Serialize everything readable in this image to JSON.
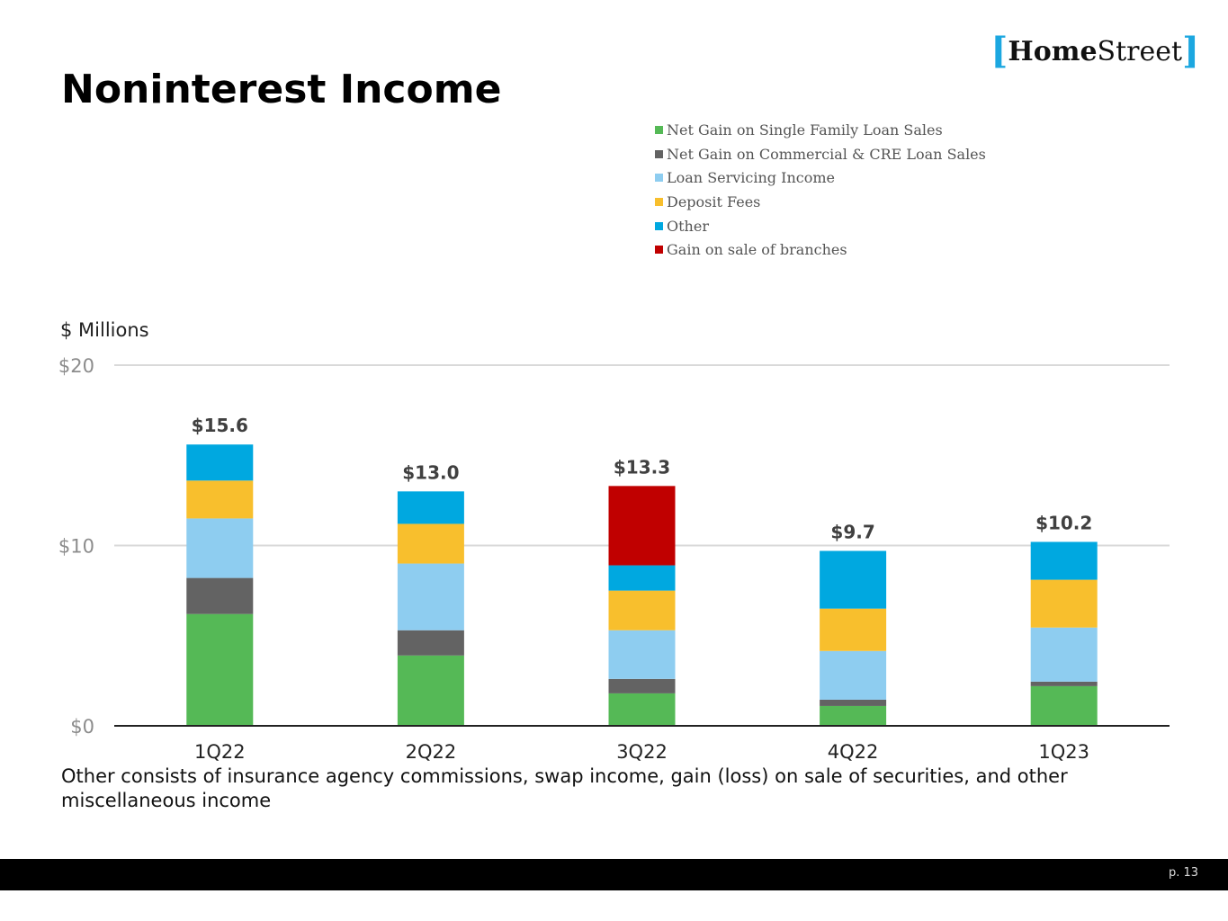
{
  "title": "Noninterest Income",
  "logo": {
    "text_bold": "Home",
    "text_regular": "Street"
  },
  "unit_label": "$ Millions",
  "footnote": "Other consists of insurance agency commissions, swap income, gain (loss) on sale of securities, and other miscellaneous income",
  "page_number": "p. 13",
  "chart_data": {
    "type": "bar",
    "stacked": true,
    "categories": [
      "1Q22",
      "2Q22",
      "3Q22",
      "4Q22",
      "1Q23"
    ],
    "series": [
      {
        "name": "Net Gain on Single Family Loan Sales",
        "color": "#55b956",
        "values": [
          6.2,
          3.9,
          1.8,
          1.1,
          2.2
        ]
      },
      {
        "name": "Net Gain on Commercial & CRE Loan Sales",
        "color": "#636363",
        "values": [
          2.0,
          1.4,
          0.8,
          0.35,
          0.25
        ]
      },
      {
        "name": "Loan Servicing Income",
        "color": "#8ecdf0",
        "values": [
          3.3,
          3.7,
          2.7,
          2.7,
          3.0
        ]
      },
      {
        "name": "Deposit Fees",
        "color": "#f8bf2d",
        "values": [
          2.1,
          2.2,
          2.2,
          2.35,
          2.65
        ]
      },
      {
        "name": "Other",
        "color": "#00a8e0",
        "values": [
          2.0,
          1.8,
          1.4,
          3.2,
          2.1
        ]
      },
      {
        "name": "Gain on sale of branches",
        "color": "#c00000",
        "values": [
          0,
          0,
          4.4,
          0,
          0
        ]
      }
    ],
    "totals": [
      "$15.6",
      "$13.0",
      "$13.3",
      "$9.7",
      "$10.2"
    ],
    "total_values": [
      15.6,
      13.0,
      13.3,
      9.7,
      10.2
    ],
    "yticks": [
      "$0",
      "$10",
      "$20"
    ],
    "ytick_values": [
      0,
      10,
      20
    ],
    "ylim": [
      0,
      20
    ],
    "grid": true,
    "legend_position": "top-right",
    "ylabel": "$ Millions"
  }
}
